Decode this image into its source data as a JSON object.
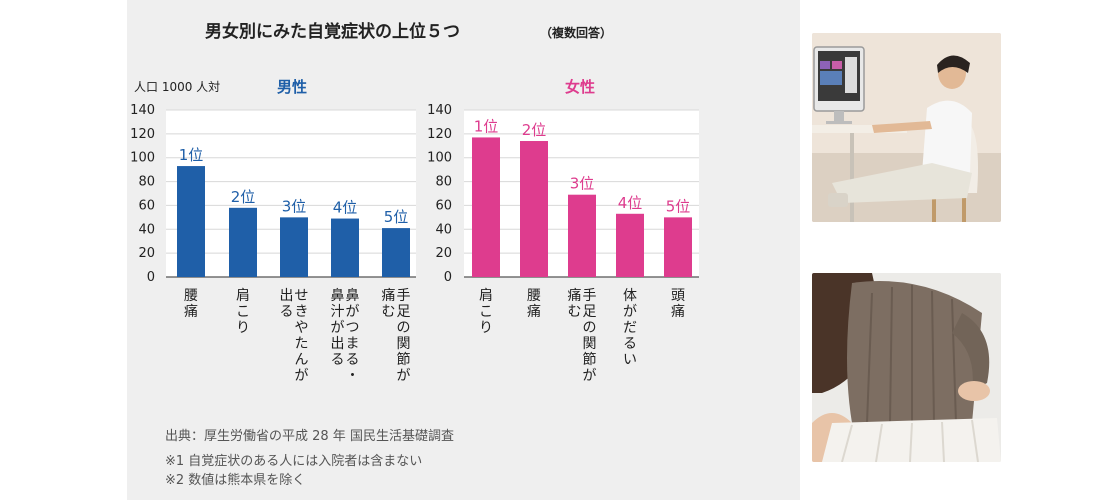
{
  "colors": {
    "background_panel": "#efefef",
    "male": "#1f5fa8",
    "female": "#de3c8e",
    "text": "#222222",
    "note_text": "#555555",
    "grid": "#ffffff"
  },
  "chart_data": [
    {
      "type": "bar",
      "title": "男女別にみた自覚症状の上位５つ",
      "title_note": "（複数回答）",
      "unit_label": "人口 1000 人対",
      "panel": "男性",
      "categories": [
        "腰痛",
        "肩こり",
        "せきやたんが出る",
        "鼻がつまる・鼻汁が出る",
        "手足の関節が痛む"
      ],
      "rank_labels": [
        "1位",
        "2位",
        "3位",
        "4位",
        "5位"
      ],
      "values": [
        93,
        58,
        50,
        49,
        41
      ],
      "ylim": [
        0,
        140
      ],
      "yticks": [
        0,
        20,
        40,
        60,
        80,
        100,
        120,
        140
      ],
      "grid": true
    },
    {
      "type": "bar",
      "panel": "女性",
      "categories": [
        "肩こり",
        "腰痛",
        "手足の関節が痛む",
        "体がだるい",
        "頭痛"
      ],
      "rank_labels": [
        "1位",
        "2位",
        "3位",
        "4位",
        "5位"
      ],
      "values": [
        117,
        114,
        69,
        53,
        50
      ],
      "ylim": [
        0,
        140
      ],
      "yticks": [
        0,
        20,
        40,
        60,
        80,
        100,
        120,
        140
      ],
      "grid": true
    }
  ],
  "notes": {
    "source": "出典：厚生労働省の平成 28 年 国民生活基礎調査",
    "note1": "※1 自覚症状のある人には入院者は含まない",
    "note2": "※2 数値は熊本県を除く"
  }
}
